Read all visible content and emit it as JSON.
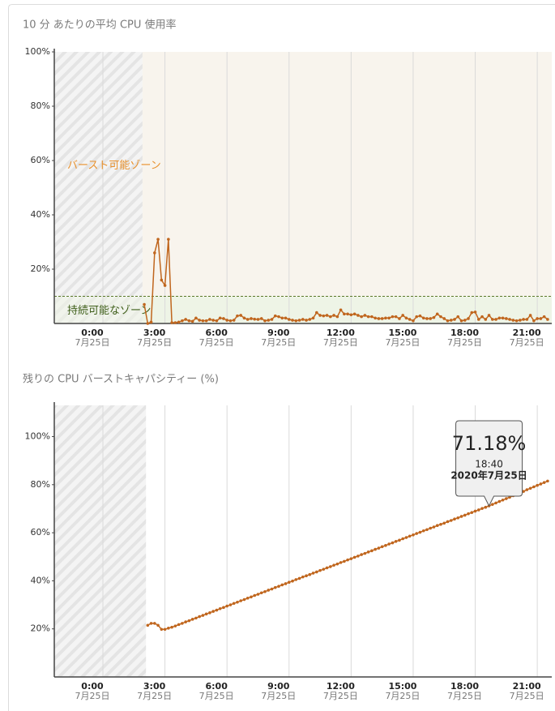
{
  "chart_data": [
    {
      "type": "line",
      "title": "10 分 あたりの平均 CPU 使用率",
      "ylim": [
        0,
        100
      ],
      "yticks": [
        {
          "value": 20,
          "label": "20%"
        },
        {
          "value": 40,
          "label": "40%"
        },
        {
          "value": 60,
          "label": "60%"
        },
        {
          "value": 80,
          "label": "80%"
        },
        {
          "value": 100,
          "label": "100%"
        }
      ],
      "xlim": [
        -141,
        1302
      ],
      "xticks": [
        {
          "value": 0,
          "label": "0:00"
        },
        {
          "value": 180,
          "label": "3:00"
        },
        {
          "value": 360,
          "label": "6:00"
        },
        {
          "value": 540,
          "label": "9:00"
        },
        {
          "value": 720,
          "label": "12:00"
        },
        {
          "value": 900,
          "label": "15:00"
        },
        {
          "value": 1080,
          "label": "18:00"
        },
        {
          "value": 1260,
          "label": "21:00"
        }
      ],
      "xtick_dates": [
        "7月25日",
        "7月25日",
        "7月25日",
        "7月25日",
        "7月25日",
        "7月25日",
        "7月25日",
        "7月25日"
      ],
      "grid": "x",
      "no_data_until": 115,
      "threshold": 10,
      "burst_zone_label": "バースト可能ゾーン",
      "sustain_zone_label": "持続可能なゾーン",
      "x": [
        120,
        130,
        140,
        150,
        160,
        170,
        180,
        190,
        200,
        210,
        220,
        230,
        240,
        250,
        260,
        270,
        280,
        290,
        300,
        310,
        320,
        330,
        340,
        350,
        360,
        370,
        380,
        390,
        400,
        410,
        420,
        430,
        440,
        450,
        460,
        470,
        480,
        490,
        500,
        510,
        520,
        530,
        540,
        550,
        560,
        570,
        580,
        590,
        600,
        610,
        620,
        630,
        640,
        650,
        660,
        670,
        680,
        690,
        700,
        710,
        720,
        730,
        740,
        750,
        760,
        770,
        780,
        790,
        800,
        810,
        820,
        830,
        840,
        850,
        860,
        870,
        880,
        890,
        900,
        910,
        920,
        930,
        940,
        950,
        960,
        970,
        980,
        990,
        1000,
        1010,
        1020,
        1030,
        1040,
        1050,
        1060,
        1070,
        1080,
        1090,
        1100,
        1110,
        1120,
        1130,
        1140,
        1150,
        1160,
        1170,
        1180,
        1190,
        1200,
        1210,
        1220,
        1230,
        1240,
        1250,
        1260,
        1270,
        1280,
        1290
      ],
      "series": [
        {
          "color": "#c0661e",
          "values": [
            7,
            0,
            0.5,
            26,
            31,
            16,
            14,
            31,
            0.3,
            0.3,
            0.5,
            1,
            1.5,
            1,
            0.8,
            2,
            1.2,
            1,
            1,
            1.5,
            1.2,
            1,
            2,
            1.8,
            1.2,
            1,
            1.2,
            2.8,
            3,
            2,
            1.5,
            1.8,
            1.6,
            1.5,
            1.8,
            1,
            1.2,
            1.5,
            2.8,
            2.5,
            2,
            2,
            1.5,
            1.2,
            1,
            1.2,
            1.5,
            1.2,
            1.5,
            2,
            4,
            3,
            2.8,
            3,
            2.5,
            3,
            2.5,
            5,
            3.5,
            3.5,
            3.2,
            3.5,
            3,
            2.5,
            3,
            2.5,
            2.5,
            2,
            1.8,
            1.8,
            2,
            2,
            2.5,
            2.5,
            1.8,
            3,
            2,
            1.5,
            1,
            2.5,
            2.8,
            2,
            1.8,
            1.8,
            2.2,
            3.5,
            2.5,
            1.8,
            1,
            1.2,
            1.5,
            2.5,
            1,
            1.2,
            1.8,
            4,
            4.2,
            1.5,
            2.5,
            1.5,
            3,
            1.5,
            1.5,
            2,
            2,
            1.8,
            1.5,
            1.2,
            1,
            1.2,
            1.5,
            1.5,
            3,
            1,
            1.8,
            1.8,
            2.5,
            1.5
          ]
        }
      ]
    },
    {
      "type": "line",
      "title": "残りの CPU バーストキャパシティー (%)",
      "ylim": [
        0,
        113
      ],
      "yticks": [
        {
          "value": 20,
          "label": "20%"
        },
        {
          "value": 40,
          "label": "40%"
        },
        {
          "value": 60,
          "label": "60%"
        },
        {
          "value": 80,
          "label": "80%"
        },
        {
          "value": 100,
          "label": "100%"
        }
      ],
      "xlim": [
        -141,
        1302
      ],
      "xticks": [
        {
          "value": 0,
          "label": "0:00"
        },
        {
          "value": 180,
          "label": "3:00"
        },
        {
          "value": 360,
          "label": "6:00"
        },
        {
          "value": 540,
          "label": "9:00"
        },
        {
          "value": 720,
          "label": "12:00"
        },
        {
          "value": 900,
          "label": "15:00"
        },
        {
          "value": 1080,
          "label": "18:00"
        },
        {
          "value": 1260,
          "label": "21:00"
        }
      ],
      "xtick_dates": [
        "7月25日",
        "7月25日",
        "7月25日",
        "7月25日",
        "7月25日",
        "7月25日",
        "7月25日",
        "7月25日"
      ],
      "grid": "x",
      "no_data_until": 125,
      "x": [
        130,
        140,
        150,
        160,
        170,
        180,
        190,
        200,
        210,
        220,
        230,
        240,
        250,
        260,
        270,
        280,
        290,
        300,
        310,
        320,
        330,
        340,
        350,
        360,
        370,
        380,
        390,
        400,
        410,
        420,
        430,
        440,
        450,
        460,
        470,
        480,
        490,
        500,
        510,
        520,
        530,
        540,
        550,
        560,
        570,
        580,
        590,
        600,
        610,
        620,
        630,
        640,
        650,
        660,
        670,
        680,
        690,
        700,
        710,
        720,
        730,
        740,
        750,
        760,
        770,
        780,
        790,
        800,
        810,
        820,
        830,
        840,
        850,
        860,
        870,
        880,
        890,
        900,
        910,
        920,
        930,
        940,
        950,
        960,
        970,
        980,
        990,
        1000,
        1010,
        1020,
        1030,
        1040,
        1050,
        1060,
        1070,
        1080,
        1090,
        1100,
        1110,
        1120,
        1130,
        1140,
        1150,
        1160,
        1170,
        1180,
        1190,
        1200,
        1210,
        1220,
        1230,
        1240,
        1250,
        1260,
        1270,
        1280,
        1290
      ],
      "series": [
        {
          "color": "#c0661e",
          "values": [
            21.5,
            22.3,
            22.3,
            21.5,
            19.8,
            19.8,
            20.3,
            20.7,
            21.2,
            21.8,
            22.3,
            22.9,
            23.4,
            24.0,
            24.5,
            25.1,
            25.6,
            26.2,
            26.7,
            27.3,
            27.8,
            28.4,
            28.9,
            29.5,
            30.0,
            30.6,
            31.1,
            31.7,
            32.2,
            32.8,
            33.3,
            33.9,
            34.4,
            35.0,
            35.5,
            36.1,
            36.6,
            37.2,
            37.7,
            38.3,
            38.8,
            39.4,
            39.9,
            40.5,
            41.0,
            41.6,
            42.1,
            42.6,
            43.2,
            43.7,
            44.3,
            44.8,
            45.4,
            45.9,
            46.5,
            47.0,
            47.6,
            48.1,
            48.7,
            49.2,
            49.8,
            50.3,
            50.9,
            51.4,
            52.0,
            52.5,
            53.1,
            53.6,
            54.2,
            54.7,
            55.3,
            55.8,
            56.4,
            56.9,
            57.5,
            58.0,
            58.6,
            59.1,
            59.7,
            60.2,
            60.8,
            61.3,
            61.9,
            62.4,
            63.0,
            63.5,
            64.0,
            64.6,
            65.1,
            65.7,
            66.2,
            66.8,
            67.3,
            67.9,
            68.4,
            69.0,
            69.5,
            70.1,
            70.6,
            71.18,
            71.8,
            72.4,
            73.0,
            73.6,
            74.2,
            74.8,
            75.4,
            76.0,
            76.6,
            77.2,
            77.9,
            78.5,
            79.1,
            79.7,
            80.3,
            80.9,
            81.5
          ]
        }
      ],
      "tooltip": {
        "x": {
          "value": 1120,
          "label": "18:40"
        },
        "value": {
          "value": 71.18,
          "label": "71.18%"
        },
        "date": "2020年7月25日"
      }
    }
  ]
}
